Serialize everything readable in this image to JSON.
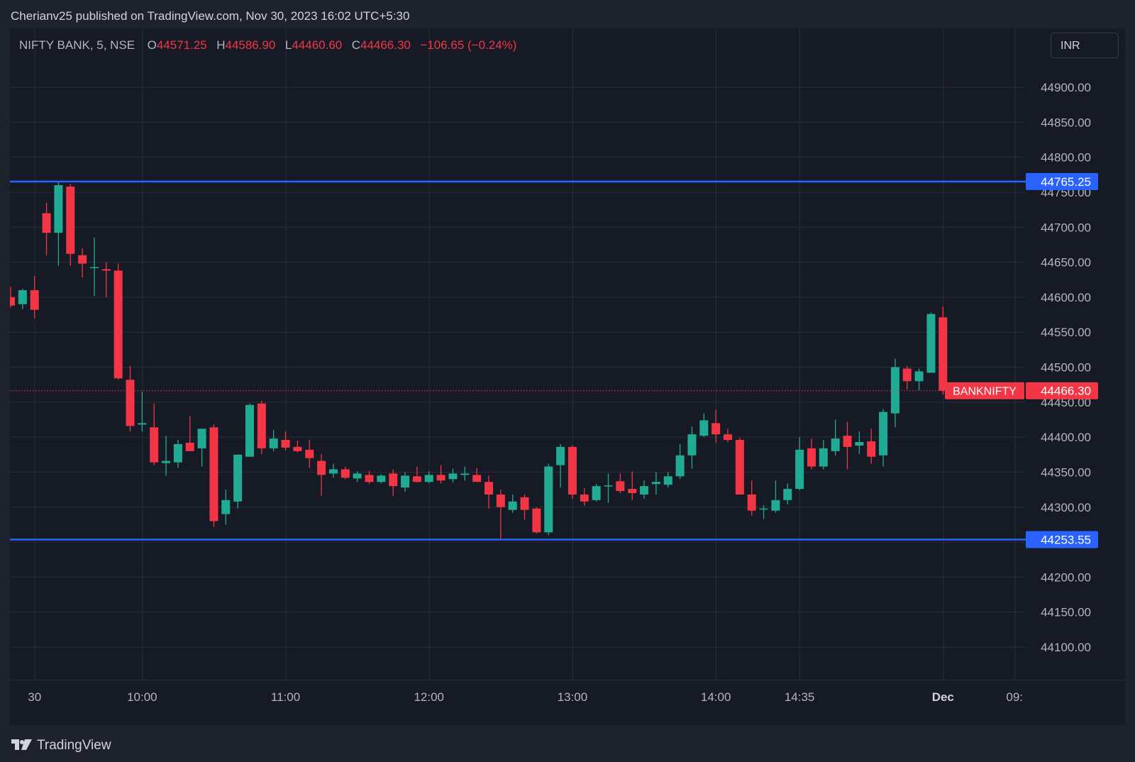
{
  "header": {
    "published_text": "Cherianv25 published on TradingView.com, Nov 30, 2023 16:02 UTC+5:30"
  },
  "legend": {
    "symbol": "NIFTY BANK, 5, NSE",
    "o_label": "O",
    "o_value": "44571.25",
    "h_label": "H",
    "h_value": "44586.90",
    "l_label": "L",
    "l_value": "44460.60",
    "c_label": "C",
    "c_value": "44466.30",
    "change": "−106.65 (−0.24%)"
  },
  "currency_button": {
    "label": "INR"
  },
  "footer": {
    "brand": "TradingView"
  },
  "colors": {
    "up": "#22ab94",
    "down": "#f23645",
    "level_line": "#2962ff",
    "grid": "#2a2e39",
    "axis_text": "#b2b5be",
    "background": "#161a25"
  },
  "chart_data": {
    "type": "candlestick",
    "symbol": "NIFTY BANK",
    "interval": "5",
    "exchange": "NSE",
    "ylim": [
      44000,
      44950
    ],
    "y_ticks": [
      44100,
      44150,
      44200,
      44250,
      44300,
      44350,
      44400,
      44450,
      44500,
      44550,
      44600,
      44650,
      44700,
      44750,
      44800,
      44850,
      44900
    ],
    "y_tick_labels": [
      "44100.00",
      "44150.00",
      "44200.00",
      "44250.00",
      "44300.00",
      "44350.00",
      "44400.00",
      "44450.00",
      "44500.00",
      "44550.00",
      "44600.00",
      "44650.00",
      "44700.00",
      "44750.00",
      "44800.00",
      "44850.00",
      "44900.00"
    ],
    "x_ticks": [
      {
        "label": "30",
        "bar": 2
      },
      {
        "label": "10:00",
        "bar": 11
      },
      {
        "label": "11:00",
        "bar": 23
      },
      {
        "label": "12:00",
        "bar": 35
      },
      {
        "label": "13:00",
        "bar": 47
      },
      {
        "label": "14:00",
        "bar": 59
      },
      {
        "label": "14:35",
        "bar": 66
      },
      {
        "label": "Dec",
        "bar": 78
      },
      {
        "label": "09:",
        "bar": 84
      }
    ],
    "horizontal_lines": [
      {
        "value": 44765.25,
        "label": "44765.25"
      },
      {
        "value": 44253.55,
        "label": "44253.55"
      }
    ],
    "last_price": {
      "value": 44466.3,
      "label": "44466.30",
      "symbol": "BANKNIFTY"
    },
    "candles": [
      {
        "o": 44600,
        "h": 44615,
        "l": 44585,
        "c": 44588
      },
      {
        "o": 44590,
        "h": 44612,
        "l": 44583,
        "c": 44610
      },
      {
        "o": 44610,
        "h": 44630,
        "l": 44570,
        "c": 44582
      },
      {
        "o": 44720,
        "h": 44735,
        "l": 44660,
        "c": 44692
      },
      {
        "o": 44692,
        "h": 44765,
        "l": 44645,
        "c": 44760
      },
      {
        "o": 44758,
        "h": 44762,
        "l": 44645,
        "c": 44662
      },
      {
        "o": 44660,
        "h": 44670,
        "l": 44628,
        "c": 44648
      },
      {
        "o": 44642,
        "h": 44685,
        "l": 44602,
        "c": 44643
      },
      {
        "o": 44640,
        "h": 44650,
        "l": 44600,
        "c": 44638
      },
      {
        "o": 44638,
        "h": 44648,
        "l": 44482,
        "c": 44484
      },
      {
        "o": 44482,
        "h": 44502,
        "l": 44408,
        "c": 44416
      },
      {
        "o": 44418,
        "h": 44465,
        "l": 44408,
        "c": 44420
      },
      {
        "o": 44414,
        "h": 44448,
        "l": 44360,
        "c": 44364
      },
      {
        "o": 44363,
        "h": 44402,
        "l": 44345,
        "c": 44366
      },
      {
        "o": 44364,
        "h": 44396,
        "l": 44356,
        "c": 44390
      },
      {
        "o": 44392,
        "h": 44430,
        "l": 44382,
        "c": 44380
      },
      {
        "o": 44384,
        "h": 44412,
        "l": 44358,
        "c": 44412
      },
      {
        "o": 44414,
        "h": 44418,
        "l": 44272,
        "c": 44280
      },
      {
        "o": 44290,
        "h": 44325,
        "l": 44275,
        "c": 44310
      },
      {
        "o": 44308,
        "h": 44375,
        "l": 44298,
        "c": 44375
      },
      {
        "o": 44372,
        "h": 44448,
        "l": 44372,
        "c": 44446
      },
      {
        "o": 44448,
        "h": 44452,
        "l": 44376,
        "c": 44384
      },
      {
        "o": 44384,
        "h": 44410,
        "l": 44380,
        "c": 44398
      },
      {
        "o": 44396,
        "h": 44408,
        "l": 44381,
        "c": 44385
      },
      {
        "o": 44386,
        "h": 44395,
        "l": 44378,
        "c": 44380
      },
      {
        "o": 44382,
        "h": 44396,
        "l": 44356,
        "c": 44370
      },
      {
        "o": 44366,
        "h": 44376,
        "l": 44316,
        "c": 44346
      },
      {
        "o": 44348,
        "h": 44362,
        "l": 44342,
        "c": 44354
      },
      {
        "o": 44354,
        "h": 44358,
        "l": 44340,
        "c": 44342
      },
      {
        "o": 44341,
        "h": 44351,
        "l": 44336,
        "c": 44348
      },
      {
        "o": 44346,
        "h": 44352,
        "l": 44333,
        "c": 44336
      },
      {
        "o": 44336,
        "h": 44347,
        "l": 44334,
        "c": 44345
      },
      {
        "o": 44348,
        "h": 44354,
        "l": 44316,
        "c": 44330
      },
      {
        "o": 44328,
        "h": 44350,
        "l": 44322,
        "c": 44345
      },
      {
        "o": 44344,
        "h": 44358,
        "l": 44335,
        "c": 44336
      },
      {
        "o": 44336,
        "h": 44351,
        "l": 44334,
        "c": 44346
      },
      {
        "o": 44346,
        "h": 44360,
        "l": 44334,
        "c": 44338
      },
      {
        "o": 44340,
        "h": 44355,
        "l": 44335,
        "c": 44348
      },
      {
        "o": 44346,
        "h": 44358,
        "l": 44338,
        "c": 44348
      },
      {
        "o": 44346,
        "h": 44356,
        "l": 44336,
        "c": 44336
      },
      {
        "o": 44336,
        "h": 44345,
        "l": 44298,
        "c": 44318
      },
      {
        "o": 44318,
        "h": 44325,
        "l": 44255,
        "c": 44300
      },
      {
        "o": 44296,
        "h": 44318,
        "l": 44292,
        "c": 44308
      },
      {
        "o": 44314,
        "h": 44318,
        "l": 44282,
        "c": 44296
      },
      {
        "o": 44298,
        "h": 44300,
        "l": 44262,
        "c": 44264
      },
      {
        "o": 44264,
        "h": 44362,
        "l": 44260,
        "c": 44358
      },
      {
        "o": 44360,
        "h": 44390,
        "l": 44328,
        "c": 44386
      },
      {
        "o": 44386,
        "h": 44388,
        "l": 44312,
        "c": 44318
      },
      {
        "o": 44318,
        "h": 44327,
        "l": 44302,
        "c": 44308
      },
      {
        "o": 44310,
        "h": 44333,
        "l": 44308,
        "c": 44330
      },
      {
        "o": 44331,
        "h": 44348,
        "l": 44306,
        "c": 44331
      },
      {
        "o": 44337,
        "h": 44348,
        "l": 44320,
        "c": 44323
      },
      {
        "o": 44326,
        "h": 44351,
        "l": 44310,
        "c": 44320
      },
      {
        "o": 44318,
        "h": 44338,
        "l": 44312,
        "c": 44330
      },
      {
        "o": 44333,
        "h": 44350,
        "l": 44318,
        "c": 44336
      },
      {
        "o": 44332,
        "h": 44350,
        "l": 44328,
        "c": 44344
      },
      {
        "o": 44344,
        "h": 44390,
        "l": 44340,
        "c": 44374
      },
      {
        "o": 44374,
        "h": 44415,
        "l": 44355,
        "c": 44404
      },
      {
        "o": 44402,
        "h": 44434,
        "l": 44400,
        "c": 44424
      },
      {
        "o": 44420,
        "h": 44439,
        "l": 44392,
        "c": 44404
      },
      {
        "o": 44404,
        "h": 44412,
        "l": 44393,
        "c": 44396
      },
      {
        "o": 44396,
        "h": 44399,
        "l": 44318,
        "c": 44318
      },
      {
        "o": 44318,
        "h": 44338,
        "l": 44288,
        "c": 44295
      },
      {
        "o": 44297,
        "h": 44303,
        "l": 44283,
        "c": 44298
      },
      {
        "o": 44295,
        "h": 44338,
        "l": 44292,
        "c": 44310
      },
      {
        "o": 44310,
        "h": 44334,
        "l": 44304,
        "c": 44326
      },
      {
        "o": 44326,
        "h": 44400,
        "l": 44324,
        "c": 44382
      },
      {
        "o": 44384,
        "h": 44398,
        "l": 44354,
        "c": 44358
      },
      {
        "o": 44358,
        "h": 44396,
        "l": 44354,
        "c": 44384
      },
      {
        "o": 44380,
        "h": 44425,
        "l": 44374,
        "c": 44398
      },
      {
        "o": 44402,
        "h": 44422,
        "l": 44354,
        "c": 44386
      },
      {
        "o": 44388,
        "h": 44408,
        "l": 44376,
        "c": 44393
      },
      {
        "o": 44394,
        "h": 44412,
        "l": 44362,
        "c": 44372
      },
      {
        "o": 44374,
        "h": 44440,
        "l": 44358,
        "c": 44436
      },
      {
        "o": 44434,
        "h": 44512,
        "l": 44414,
        "c": 44500
      },
      {
        "o": 44498,
        "h": 44502,
        "l": 44468,
        "c": 44480
      },
      {
        "o": 44480,
        "h": 44498,
        "l": 44467,
        "c": 44494
      },
      {
        "o": 44492,
        "h": 44578,
        "l": 44492,
        "c": 44576
      },
      {
        "o": 44571.25,
        "h": 44586.9,
        "l": 44460.6,
        "c": 44466.3
      }
    ]
  }
}
